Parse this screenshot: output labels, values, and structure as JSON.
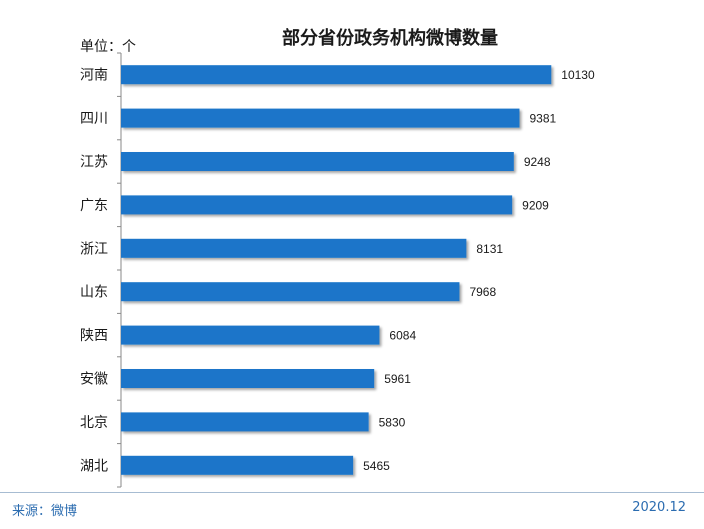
{
  "chart_data": {
    "type": "bar",
    "orientation": "horizontal",
    "title": "部分省份政务机构微博数量",
    "unit_label": "单位：个",
    "categories": [
      "河南",
      "四川",
      "江苏",
      "广东",
      "浙江",
      "山东",
      "陕西",
      "安徽",
      "北京",
      "湖北"
    ],
    "values": [
      10130,
      9381,
      9248,
      9209,
      8131,
      7968,
      6084,
      5961,
      5830,
      5465
    ],
    "xlim": [
      0,
      10500
    ],
    "grid": false,
    "legend": "none",
    "bar_color": "#1a75c9"
  },
  "footer": {
    "source": "来源：微博",
    "date": "2020.12"
  }
}
